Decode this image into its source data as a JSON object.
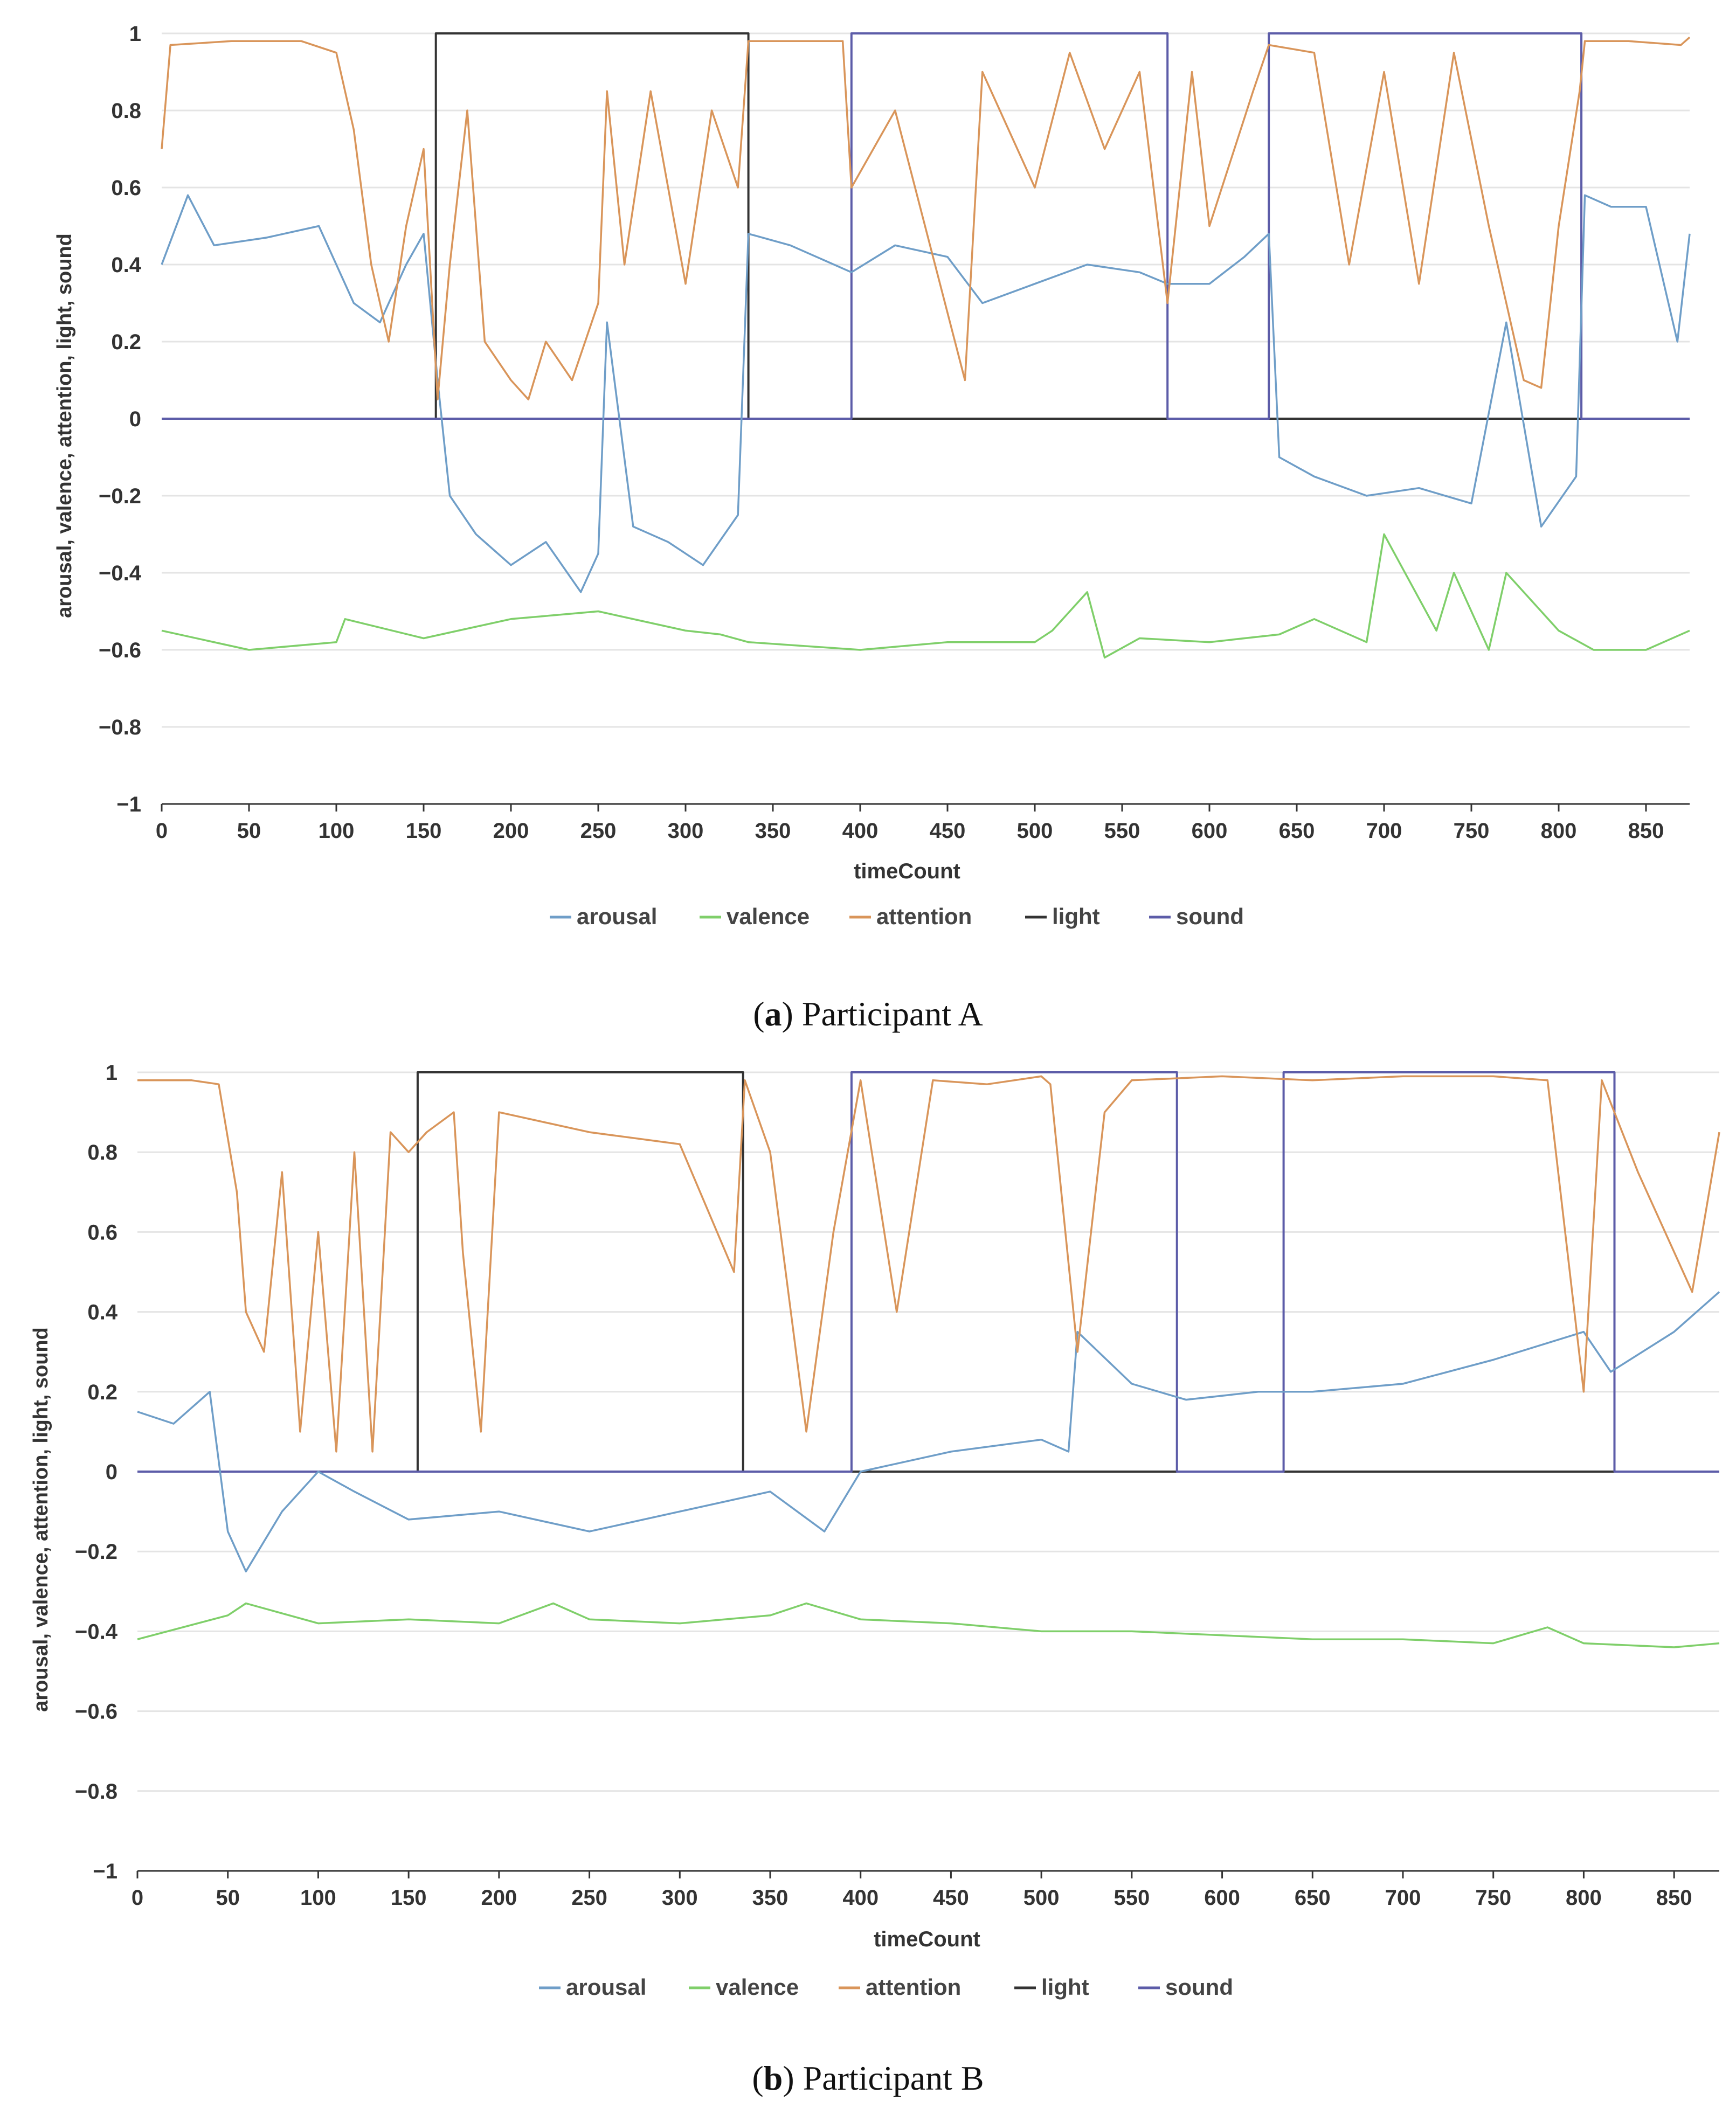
{
  "colors": {
    "arousal": "#6f9ec8",
    "valence": "#7fcf6a",
    "attention": "#d9955a",
    "light": "#333333",
    "sound": "#5c5ca8",
    "grid": "#e4e4e4",
    "axis": "#333333"
  },
  "chart_data": [
    {
      "type": "line",
      "panel": "a",
      "caption_letter": "a",
      "caption_rest": ") Participant A",
      "caption_open": "(",
      "xlabel": "timeCount",
      "ylabel": "arousal, valence, attention, light, sound",
      "xlim": [
        0,
        875
      ],
      "ylim": [
        -1,
        1
      ],
      "xticks": [
        0,
        50,
        100,
        150,
        200,
        250,
        300,
        350,
        400,
        450,
        500,
        550,
        600,
        650,
        700,
        750,
        800,
        850
      ],
      "yticks": [
        1,
        0.8,
        0.6,
        0.4,
        0.2,
        0,
        -0.2,
        -0.4,
        -0.6,
        -0.8,
        -1
      ],
      "ytick_labels": [
        "1",
        "0.8",
        "0.6",
        "0.4",
        "0.2",
        "0",
        "−0.2",
        "−0.4",
        "−0.6",
        "−0.8",
        "−1"
      ],
      "legend": [
        "arousal",
        "valence",
        "attention",
        "light",
        "sound"
      ],
      "series": [
        {
          "name": "arousal",
          "key": "arousal",
          "x": [
            0,
            15,
            30,
            60,
            90,
            110,
            125,
            140,
            150,
            158,
            165,
            180,
            200,
            220,
            240,
            250,
            255,
            270,
            290,
            310,
            330,
            336,
            360,
            395,
            420,
            450,
            470,
            500,
            530,
            560,
            576,
            600,
            620,
            634,
            640,
            660,
            690,
            720,
            750,
            770,
            790,
            810,
            815,
            830,
            850,
            868,
            875
          ],
          "y": [
            0.4,
            0.58,
            0.45,
            0.47,
            0.5,
            0.3,
            0.25,
            0.4,
            0.48,
            0.1,
            -0.2,
            -0.3,
            -0.38,
            -0.32,
            -0.45,
            -0.35,
            0.25,
            -0.28,
            -0.32,
            -0.38,
            -0.25,
            0.48,
            0.45,
            0.38,
            0.45,
            0.42,
            0.3,
            0.35,
            0.4,
            0.38,
            0.35,
            0.35,
            0.42,
            0.48,
            -0.1,
            -0.15,
            -0.2,
            -0.18,
            -0.22,
            0.25,
            -0.28,
            -0.15,
            0.58,
            0.55,
            0.55,
            0.2,
            0.48
          ]
        },
        {
          "name": "valence",
          "key": "valence",
          "x": [
            0,
            50,
            100,
            105,
            150,
            200,
            250,
            300,
            320,
            336,
            400,
            450,
            500,
            510,
            530,
            540,
            560,
            600,
            640,
            660,
            690,
            700,
            730,
            740,
            760,
            770,
            800,
            820,
            850,
            875
          ],
          "y": [
            -0.55,
            -0.6,
            -0.58,
            -0.52,
            -0.57,
            -0.52,
            -0.5,
            -0.55,
            -0.56,
            -0.58,
            -0.6,
            -0.58,
            -0.58,
            -0.55,
            -0.45,
            -0.62,
            -0.57,
            -0.58,
            -0.56,
            -0.52,
            -0.58,
            -0.3,
            -0.55,
            -0.4,
            -0.6,
            -0.4,
            -0.55,
            -0.6,
            -0.6,
            -0.55
          ]
        },
        {
          "name": "attention",
          "key": "attention",
          "x": [
            0,
            5,
            40,
            80,
            100,
            110,
            120,
            130,
            140,
            150,
            158,
            165,
            175,
            185,
            200,
            210,
            220,
            235,
            250,
            255,
            265,
            280,
            300,
            315,
            330,
            336,
            350,
            390,
            395,
            420,
            460,
            470,
            500,
            520,
            540,
            560,
            576,
            590,
            600,
            625,
            634,
            660,
            680,
            700,
            720,
            740,
            760,
            780,
            790,
            800,
            812,
            815,
            840,
            870,
            875
          ],
          "y": [
            0.7,
            0.97,
            0.98,
            0.98,
            0.95,
            0.75,
            0.4,
            0.2,
            0.5,
            0.7,
            0.05,
            0.4,
            0.8,
            0.2,
            0.1,
            0.05,
            0.2,
            0.1,
            0.3,
            0.85,
            0.4,
            0.85,
            0.35,
            0.8,
            0.6,
            0.98,
            0.98,
            0.98,
            0.6,
            0.8,
            0.1,
            0.9,
            0.6,
            0.95,
            0.7,
            0.9,
            0.3,
            0.9,
            0.5,
            0.85,
            0.97,
            0.95,
            0.4,
            0.9,
            0.35,
            0.95,
            0.5,
            0.1,
            0.08,
            0.5,
            0.85,
            0.98,
            0.98,
            0.97,
            0.99
          ]
        },
        {
          "name": "light",
          "key": "light",
          "step": true,
          "x": [
            0,
            157,
            157,
            336,
            336,
            875
          ],
          "y": [
            0,
            0,
            1,
            1,
            0,
            0
          ]
        },
        {
          "name": "sound",
          "key": "sound",
          "step": true,
          "x": [
            0,
            395,
            395,
            576,
            576,
            634,
            634,
            813,
            813,
            875
          ],
          "y": [
            0,
            0,
            1,
            1,
            0,
            0,
            1,
            1,
            0,
            0
          ]
        }
      ]
    },
    {
      "type": "line",
      "panel": "b",
      "caption_letter": "b",
      "caption_rest": ") Participant B",
      "caption_open": "(",
      "xlabel": "timeCount",
      "ylabel": "arousal, valence, attention, light, sound",
      "xlim": [
        0,
        875
      ],
      "ylim": [
        -1,
        1
      ],
      "xticks": [
        0,
        50,
        100,
        150,
        200,
        250,
        300,
        350,
        400,
        450,
        500,
        550,
        600,
        650,
        700,
        750,
        800,
        850
      ],
      "yticks": [
        1,
        0.8,
        0.6,
        0.4,
        0.2,
        0,
        -0.2,
        -0.4,
        -0.6,
        -0.8,
        -1
      ],
      "ytick_labels": [
        "1",
        "0.8",
        "0.6",
        "0.4",
        "0.2",
        "0",
        "−0.2",
        "−0.4",
        "−0.6",
        "−0.8",
        "−1"
      ],
      "legend": [
        "arousal",
        "valence",
        "attention",
        "light",
        "sound"
      ],
      "series": [
        {
          "name": "arousal",
          "key": "arousal",
          "x": [
            0,
            20,
            40,
            50,
            60,
            80,
            100,
            120,
            150,
            200,
            250,
            300,
            350,
            380,
            400,
            450,
            500,
            515,
            520,
            550,
            580,
            620,
            650,
            700,
            750,
            800,
            815,
            850,
            875
          ],
          "y": [
            0.15,
            0.12,
            0.2,
            -0.15,
            -0.25,
            -0.1,
            0.0,
            -0.05,
            -0.12,
            -0.1,
            -0.15,
            -0.1,
            -0.05,
            -0.15,
            0.0,
            0.05,
            0.08,
            0.05,
            0.35,
            0.22,
            0.18,
            0.2,
            0.2,
            0.22,
            0.28,
            0.35,
            0.25,
            0.35,
            0.45
          ]
        },
        {
          "name": "valence",
          "key": "valence",
          "x": [
            0,
            50,
            60,
            100,
            150,
            200,
            230,
            250,
            300,
            350,
            370,
            400,
            450,
            500,
            550,
            600,
            650,
            700,
            750,
            780,
            800,
            850,
            875
          ],
          "y": [
            -0.42,
            -0.36,
            -0.33,
            -0.38,
            -0.37,
            -0.38,
            -0.33,
            -0.37,
            -0.38,
            -0.36,
            -0.33,
            -0.37,
            -0.38,
            -0.4,
            -0.4,
            -0.41,
            -0.42,
            -0.42,
            -0.43,
            -0.39,
            -0.43,
            -0.44,
            -0.43
          ]
        },
        {
          "name": "attention",
          "key": "attention",
          "x": [
            0,
            30,
            45,
            55,
            60,
            70,
            80,
            90,
            100,
            110,
            120,
            130,
            140,
            150,
            160,
            175,
            180,
            190,
            200,
            250,
            300,
            330,
            336,
            350,
            370,
            385,
            400,
            420,
            440,
            470,
            500,
            505,
            520,
            535,
            550,
            600,
            650,
            700,
            750,
            780,
            800,
            810,
            830,
            860,
            875
          ],
          "y": [
            0.98,
            0.98,
            0.97,
            0.7,
            0.4,
            0.3,
            0.75,
            0.1,
            0.6,
            0.05,
            0.8,
            0.05,
            0.85,
            0.8,
            0.85,
            0.9,
            0.55,
            0.1,
            0.9,
            0.85,
            0.82,
            0.5,
            0.98,
            0.8,
            0.1,
            0.6,
            0.98,
            0.4,
            0.98,
            0.97,
            0.99,
            0.97,
            0.3,
            0.9,
            0.98,
            0.99,
            0.98,
            0.99,
            0.99,
            0.98,
            0.2,
            0.98,
            0.75,
            0.45,
            0.85
          ]
        },
        {
          "name": "light",
          "key": "light",
          "step": true,
          "x": [
            0,
            155,
            155,
            335,
            335,
            875
          ],
          "y": [
            0,
            0,
            1,
            1,
            0,
            0
          ]
        },
        {
          "name": "sound",
          "key": "sound",
          "step": true,
          "x": [
            0,
            395,
            395,
            575,
            575,
            634,
            634,
            817,
            817,
            875
          ],
          "y": [
            0,
            0,
            1,
            1,
            0,
            0,
            1,
            1,
            0,
            0
          ]
        }
      ]
    }
  ]
}
